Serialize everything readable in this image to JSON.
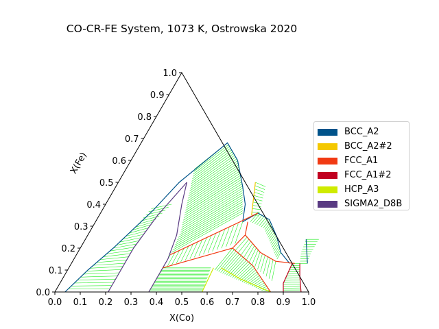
{
  "chart_data": {
    "type": "ternary phase diagram",
    "title": "CO-CR-FE System, 1073 K, Ostrowska 2020",
    "xlabel": "X(Co)",
    "ylabel": "X(Fe)",
    "xlim": [
      0,
      1
    ],
    "ylim": [
      0,
      1
    ],
    "x_ticks": [
      "0.0",
      "0.1",
      "0.2",
      "0.3",
      "0.4",
      "0.5",
      "0.6",
      "0.7",
      "0.8",
      "0.9",
      "1.0"
    ],
    "y_ticks": [
      "0.0",
      "0.1",
      "0.2",
      "0.3",
      "0.4",
      "0.5",
      "0.6",
      "0.7",
      "0.8",
      "0.9",
      "1.0"
    ],
    "legend": [
      {
        "name": "BCC_A2",
        "color": "#00538a"
      },
      {
        "name": "BCC_A2#2",
        "color": "#f4c800"
      },
      {
        "name": "FCC_A1",
        "color": "#f13a13"
      },
      {
        "name": "FCC_A1#2",
        "color": "#c10020"
      },
      {
        "name": "HCP_A3",
        "color": "#cfeb00"
      },
      {
        "name": "SIGMA2_D8B",
        "color": "#593a82"
      }
    ],
    "tie_line_color": "#22ee22",
    "boundaries": [
      {
        "phase": "BCC_A2",
        "points": [
          [
            0.04,
            0.0
          ],
          [
            0.08,
            0.1
          ],
          [
            0.13,
            0.2
          ],
          [
            0.2,
            0.37
          ],
          [
            0.24,
            0.5
          ],
          [
            0.34,
            0.68
          ],
          [
            0.42,
            0.6
          ],
          [
            0.5,
            0.48
          ],
          [
            0.55,
            0.4
          ],
          [
            0.58,
            0.32
          ]
        ]
      },
      {
        "phase": "SIGMA2_D8B",
        "points": [
          [
            0.21,
            0.0
          ],
          [
            0.21,
            0.2
          ],
          [
            0.23,
            0.35
          ],
          [
            0.27,
            0.5
          ]
        ]
      },
      {
        "phase": "SIGMA2_D8B",
        "points": [
          [
            0.27,
            0.5
          ],
          [
            0.3,
            0.4
          ],
          [
            0.35,
            0.26
          ],
          [
            0.37,
            0.15
          ],
          [
            0.37,
            0.0
          ]
        ]
      },
      {
        "phase": "BCC_A2",
        "points": [
          [
            0.58,
            0.32
          ],
          [
            0.62,
            0.36
          ],
          [
            0.68,
            0.33
          ],
          [
            0.75,
            0.25
          ],
          [
            0.8,
            0.18
          ],
          [
            0.86,
            0.13
          ]
        ]
      },
      {
        "phase": "BCC_A2",
        "points": [
          [
            0.87,
            0.24
          ],
          [
            0.93,
            0.13
          ]
        ]
      },
      {
        "phase": "BCC_A2#2",
        "points": [
          [
            0.54,
            0.5
          ],
          [
            0.6,
            0.35
          ]
        ]
      },
      {
        "phase": "FCC_A1",
        "points": [
          [
            0.37,
            0.17
          ],
          [
            0.57,
            0.32
          ],
          [
            0.62,
            0.36
          ]
        ]
      },
      {
        "phase": "FCC_A1",
        "points": [
          [
            0.37,
            0.11
          ],
          [
            0.6,
            0.2
          ],
          [
            0.62,
            0.26
          ],
          [
            0.6,
            0.32
          ]
        ]
      },
      {
        "phase": "FCC_A1",
        "points": [
          [
            0.6,
            0.2
          ],
          [
            0.72,
            0.12
          ],
          [
            0.85,
            0.0
          ]
        ]
      },
      {
        "phase": "FCC_A1",
        "points": [
          [
            0.62,
            0.26
          ],
          [
            0.72,
            0.18
          ],
          [
            0.8,
            0.14
          ],
          [
            0.88,
            0.13
          ]
        ]
      },
      {
        "phase": "FCC_A1#2",
        "points": [
          [
            0.87,
            0.13
          ],
          [
            0.88,
            0.04
          ],
          [
            0.9,
            0.0
          ]
        ]
      },
      {
        "phase": "FCC_A1#2",
        "points": [
          [
            0.9,
            0.13
          ],
          [
            0.93,
            0.07
          ],
          [
            0.97,
            0.0
          ]
        ]
      },
      {
        "phase": "HCP_A3",
        "points": [
          [
            0.57,
            0.11
          ],
          [
            0.58,
            0.0
          ]
        ]
      },
      {
        "phase": "HCP_A3",
        "points": [
          [
            0.6,
            0.11
          ],
          [
            0.7,
            0.06
          ],
          [
            0.85,
            0.0
          ]
        ]
      }
    ],
    "tie_line_regions": [
      {
        "a": [
          [
            0.04,
            0.0
          ],
          [
            0.08,
            0.1
          ],
          [
            0.13,
            0.2
          ],
          [
            0.17,
            0.3
          ],
          [
            0.19,
            0.38
          ]
        ],
        "b": [
          [
            0.21,
            0.0
          ],
          [
            0.21,
            0.1
          ],
          [
            0.21,
            0.2
          ],
          [
            0.22,
            0.3
          ],
          [
            0.26,
            0.4
          ]
        ],
        "n": 28
      },
      {
        "a": [
          [
            0.34,
            0.68
          ],
          [
            0.42,
            0.6
          ],
          [
            0.5,
            0.48
          ],
          [
            0.56,
            0.36
          ]
        ],
        "b": [
          [
            0.27,
            0.56
          ],
          [
            0.32,
            0.4
          ],
          [
            0.36,
            0.27
          ],
          [
            0.37,
            0.18
          ]
        ],
        "n": 34
      },
      {
        "a": [
          [
            0.62,
            0.36
          ],
          [
            0.68,
            0.33
          ],
          [
            0.75,
            0.25
          ],
          [
            0.8,
            0.18
          ]
        ],
        "b": [
          [
            0.61,
            0.32
          ],
          [
            0.68,
            0.29
          ],
          [
            0.74,
            0.22
          ],
          [
            0.8,
            0.15
          ]
        ],
        "n": 22
      },
      {
        "a": [
          [
            0.37,
            0.17
          ],
          [
            0.58,
            0.32
          ]
        ],
        "b": [
          [
            0.37,
            0.11
          ],
          [
            0.6,
            0.22
          ]
        ],
        "n": 16
      },
      {
        "a": [
          [
            0.37,
            0.0
          ],
          [
            0.37,
            0.11
          ]
        ],
        "b": [
          [
            0.58,
            0.0
          ],
          [
            0.56,
            0.11
          ]
        ],
        "n": 18
      },
      {
        "a": [
          [
            0.6,
            0.2
          ],
          [
            0.72,
            0.12
          ],
          [
            0.85,
            0.0
          ]
        ],
        "b": [
          [
            0.58,
            0.1
          ],
          [
            0.68,
            0.06
          ],
          [
            0.83,
            0.0
          ]
        ],
        "n": 26
      },
      {
        "a": [
          [
            0.54,
            0.5
          ],
          [
            0.6,
            0.35
          ]
        ],
        "b": [
          [
            0.59,
            0.48
          ],
          [
            0.63,
            0.35
          ]
        ],
        "n": 10
      },
      {
        "a": [
          [
            0.87,
            0.24
          ],
          [
            0.88,
            0.18
          ],
          [
            0.9,
            0.13
          ]
        ],
        "b": [
          [
            0.92,
            0.24
          ],
          [
            0.92,
            0.18
          ],
          [
            0.93,
            0.13
          ]
        ],
        "n": 10
      },
      {
        "a": [
          [
            0.87,
            0.13
          ],
          [
            0.88,
            0.04
          ],
          [
            0.9,
            0.0
          ]
        ],
        "b": [
          [
            0.9,
            0.13
          ],
          [
            0.93,
            0.07
          ],
          [
            0.97,
            0.0
          ]
        ],
        "n": 14
      },
      {
        "a": [
          [
            0.62,
            0.26
          ],
          [
            0.72,
            0.18
          ],
          [
            0.8,
            0.14
          ]
        ],
        "b": [
          [
            0.6,
            0.2
          ],
          [
            0.72,
            0.12
          ],
          [
            0.83,
            0.05
          ]
        ],
        "n": 14
      }
    ]
  }
}
